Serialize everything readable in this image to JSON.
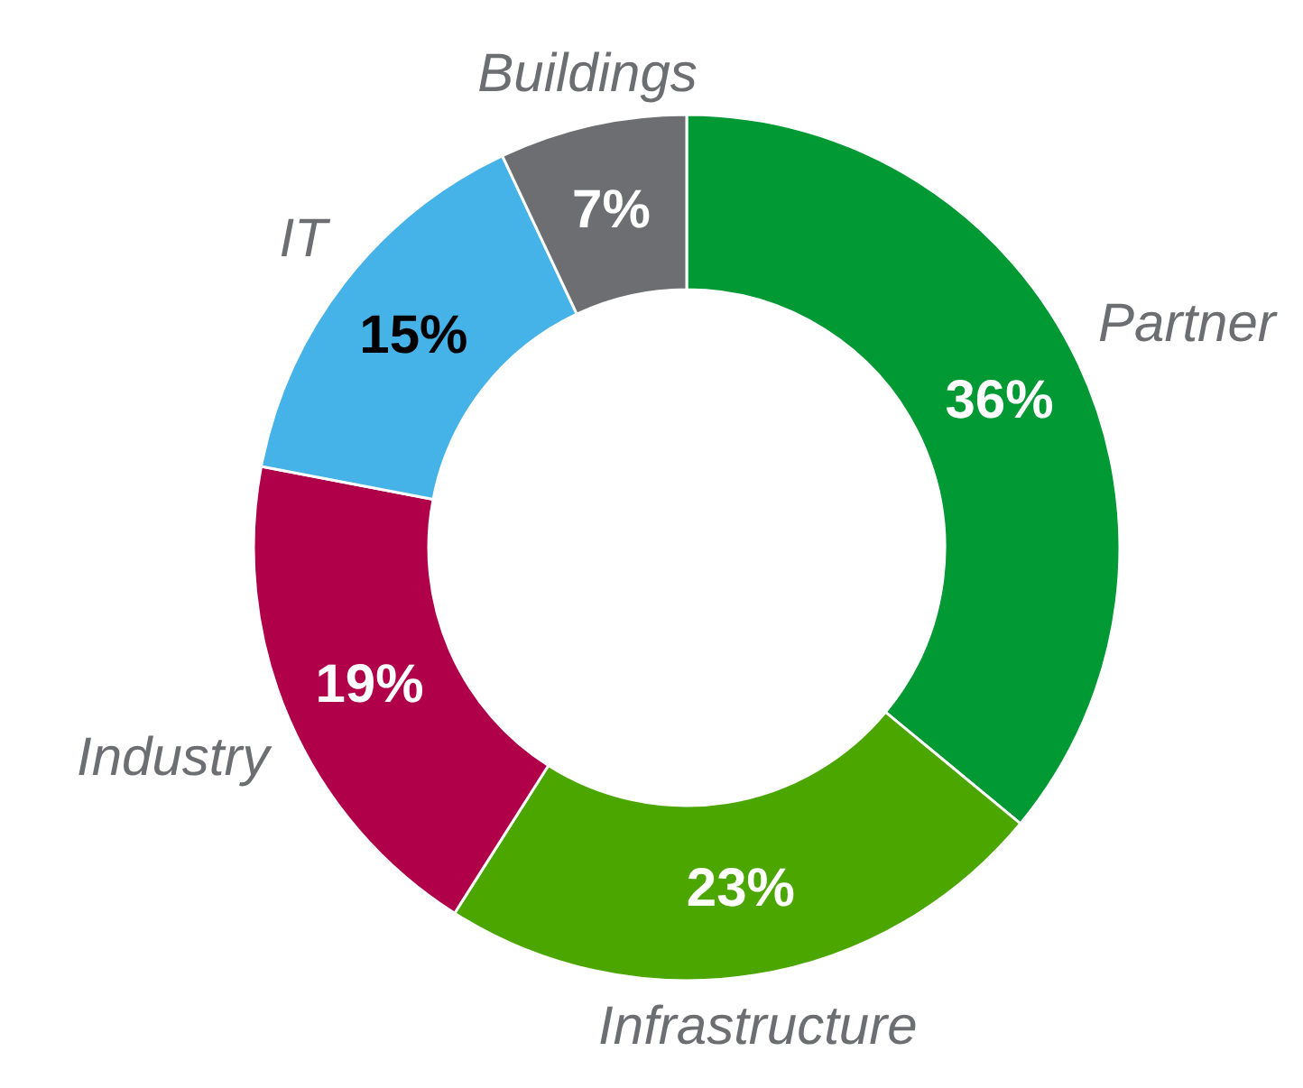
{
  "chart_data": {
    "type": "donut",
    "categories": [
      "Partner",
      "Infrastructure",
      "Industry",
      "IT",
      "Buildings"
    ],
    "values": [
      36,
      23,
      19,
      15,
      7
    ],
    "colors": [
      "#009933",
      "#4ca600",
      "#b0004a",
      "#45b3e7",
      "#6d6e71"
    ],
    "value_labels": [
      "36%",
      "23%",
      "19%",
      "15%",
      "7%"
    ]
  }
}
